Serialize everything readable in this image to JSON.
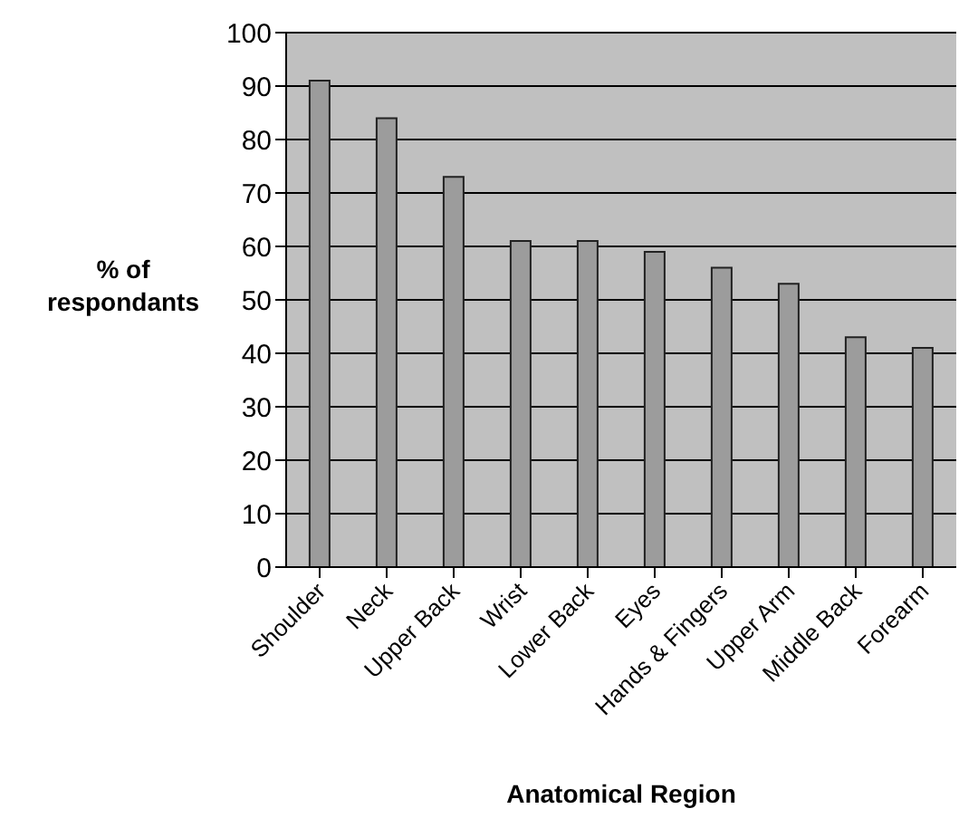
{
  "chart_data": {
    "type": "bar",
    "xlabel": "Anatomical Region",
    "ylabel": "% of respondants",
    "categories": [
      "Shoulder",
      "Neck",
      "Upper Back",
      "Wrist",
      "Lower Back",
      "Eyes",
      "Hands & Fingers",
      "Upper Arm",
      "Middle Back",
      "Forearm"
    ],
    "values": [
      91,
      84,
      73,
      61,
      61,
      59,
      56,
      53,
      43,
      41
    ],
    "color": "#9c9c9c",
    "ylim": [
      0,
      100
    ],
    "yticks": [
      0,
      10,
      20,
      30,
      40,
      50,
      60,
      70,
      80,
      90,
      100
    ],
    "grid": "y"
  }
}
